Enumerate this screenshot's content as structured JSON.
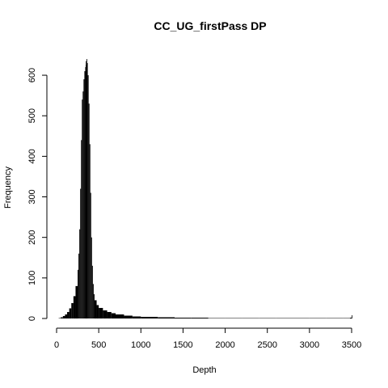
{
  "chart_data": {
    "type": "bar",
    "title": "CC_UG_firstPass DP",
    "xlabel": "Depth",
    "ylabel": "Frequency",
    "xlim": [
      0,
      3500
    ],
    "ylim": [
      0,
      640
    ],
    "xticks": [
      0,
      500,
      1000,
      1500,
      2000,
      2500,
      3000,
      3500
    ],
    "yticks": [
      0,
      100,
      200,
      300,
      400,
      500,
      600
    ],
    "grid": false,
    "legend": "none",
    "bar_color": "#000000",
    "series": [
      {
        "x": [
          0,
          25,
          50,
          75,
          100,
          125,
          150,
          175,
          200,
          225,
          250,
          260,
          270,
          280,
          290,
          300,
          310,
          320,
          330,
          340,
          345,
          350,
          355,
          360,
          370,
          380,
          390,
          400,
          410,
          420,
          430,
          440,
          450,
          475,
          500,
          550,
          600,
          650,
          700,
          800,
          900,
          1000,
          1200,
          1400,
          1600,
          1800,
          2000,
          2200,
          2400,
          2600,
          2800,
          3000,
          3200,
          3400,
          3480,
          3500
        ],
        "values": [
          0,
          1,
          3,
          6,
          10,
          16,
          25,
          38,
          55,
          80,
          120,
          160,
          220,
          320,
          440,
          540,
          560,
          590,
          610,
          620,
          635,
          625,
          640,
          630,
          600,
          530,
          430,
          310,
          200,
          130,
          85,
          60,
          45,
          33,
          26,
          20,
          16,
          13,
          10,
          7,
          5,
          4,
          3,
          2,
          2,
          1,
          1,
          1,
          1,
          1,
          1,
          1,
          1,
          1,
          2,
          8
        ]
      }
    ]
  }
}
